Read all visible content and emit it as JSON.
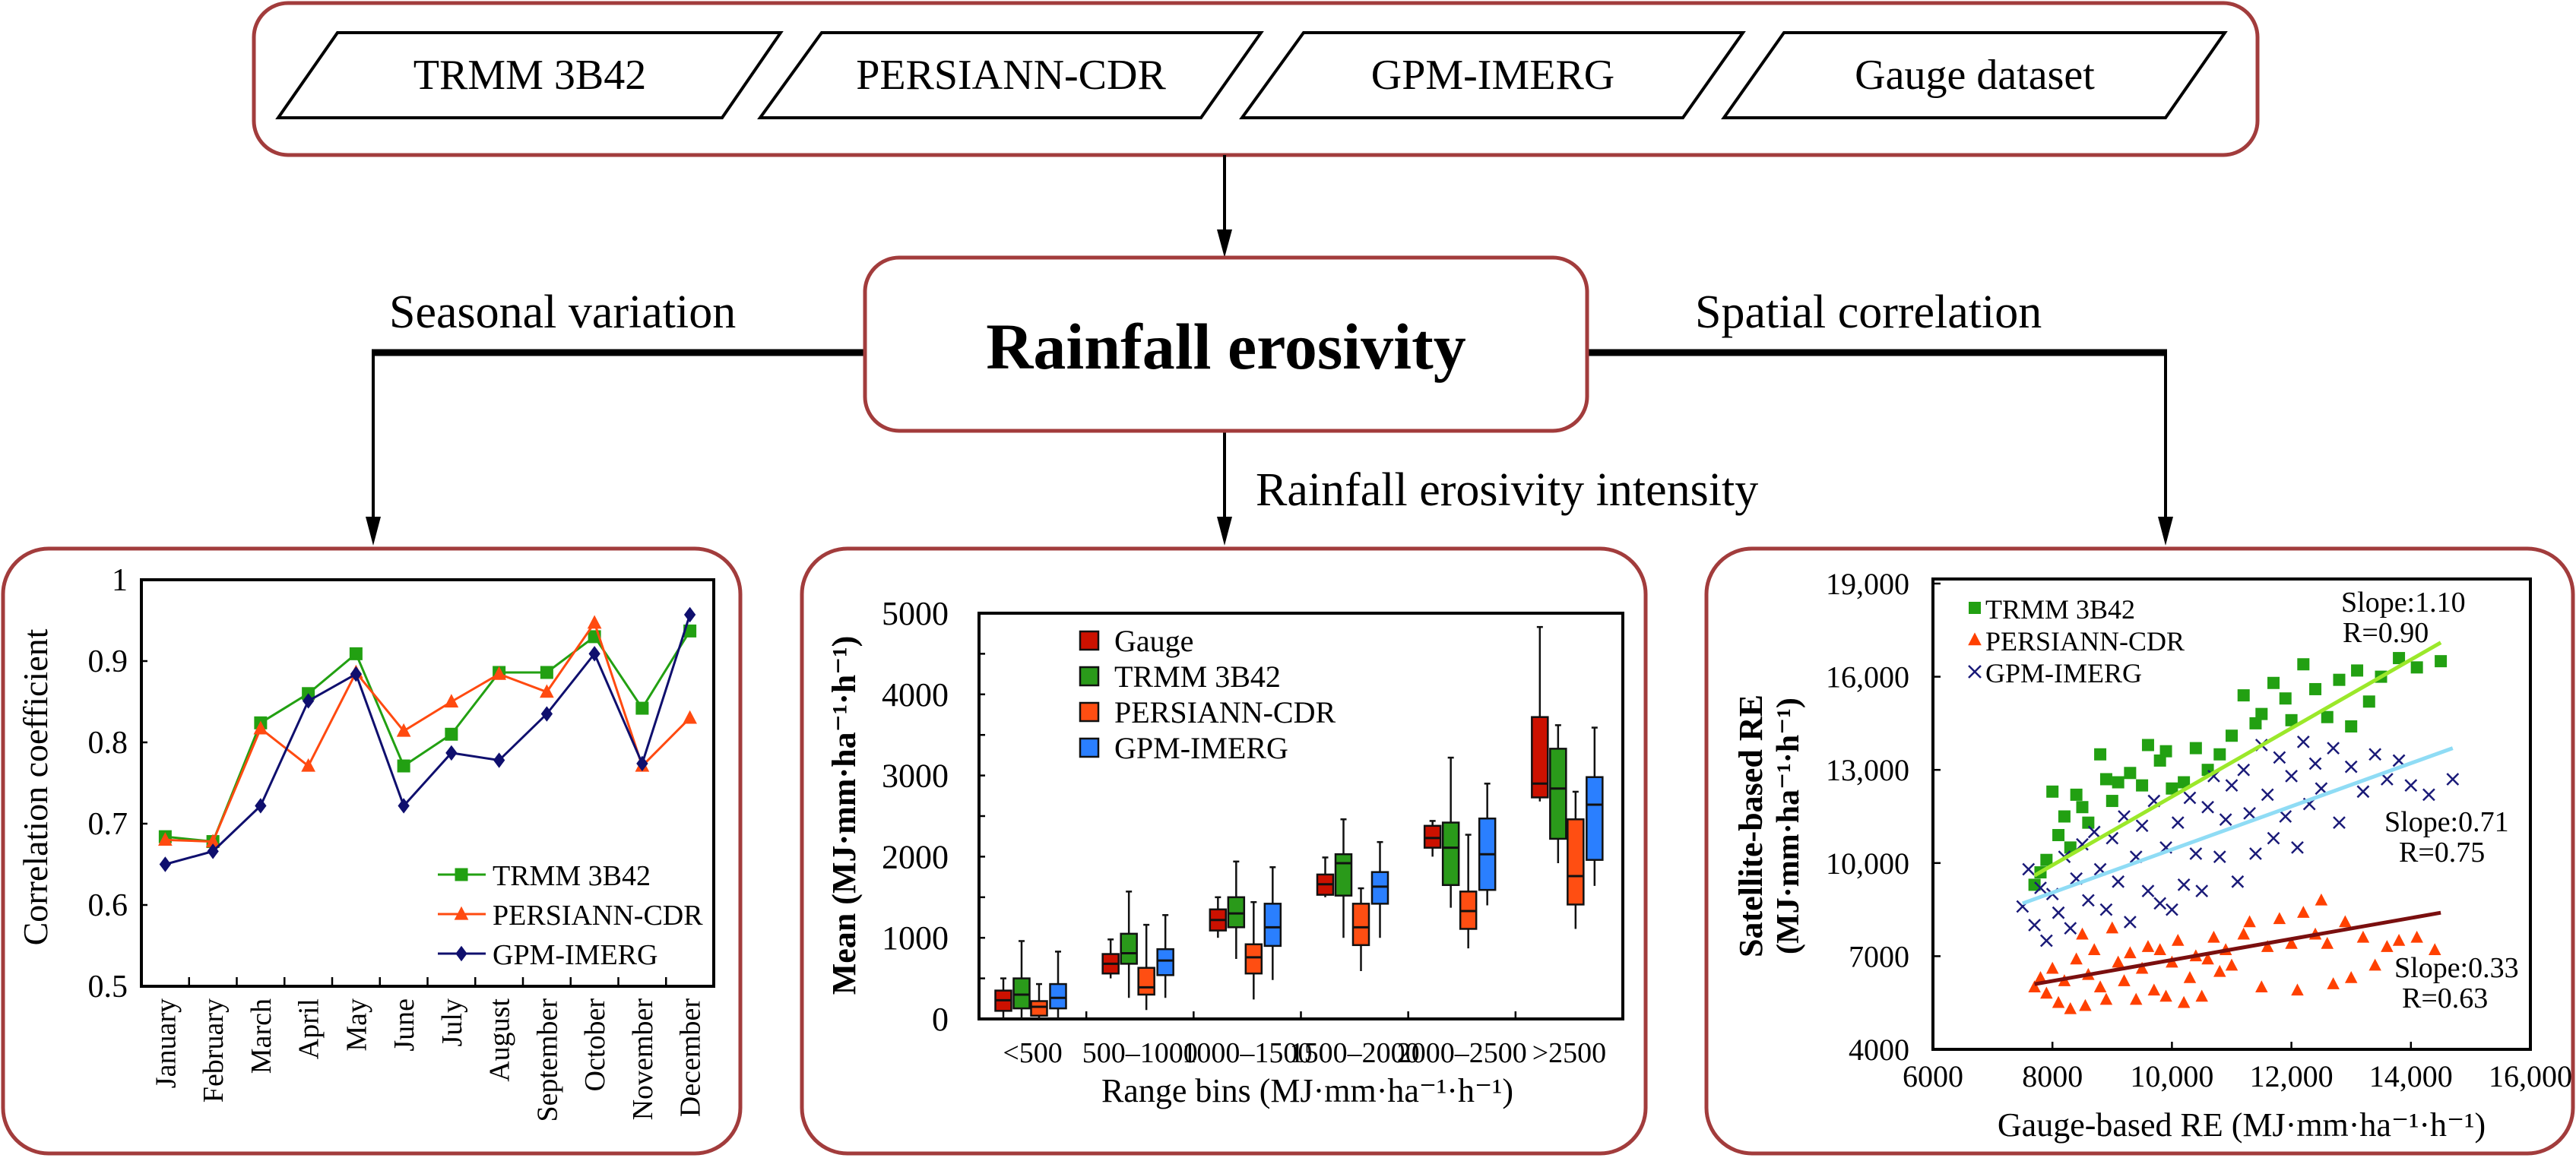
{
  "datasets": [
    "TRMM 3B42",
    "PERSIANN-CDR",
    "GPM-IMERG",
    "Gauge dataset"
  ],
  "center": {
    "title": "Rainfall erosivity"
  },
  "branches": {
    "left": "Seasonal variation",
    "middle": "Rainfall erosivity intensity",
    "right": "Spatial correlation"
  },
  "colors": {
    "panel_border": "#a23c3c"
  },
  "chart_data": [
    {
      "type": "line",
      "ylabel": "Correlation coefficient",
      "xlabel": "",
      "ylim": [
        0.5,
        1
      ],
      "yticks": [
        "0.5",
        "0.6",
        "0.7",
        "0.8",
        "0.9",
        "1"
      ],
      "categories": [
        "January",
        "February",
        "March",
        "April",
        "May",
        "June",
        "July",
        "August",
        "September",
        "October",
        "November",
        "December"
      ],
      "legend_position": "bottom-right",
      "series": [
        {
          "name": "TRMM 3B42",
          "color": "#22a012",
          "marker": "square",
          "values": [
            0.684,
            0.678,
            0.824,
            0.86,
            0.909,
            0.771,
            0.81,
            0.886,
            0.886,
            0.93,
            0.842,
            0.937
          ]
        },
        {
          "name": "PERSIANN-CDR",
          "color": "#ff4a10",
          "marker": "triangle",
          "values": [
            0.68,
            0.678,
            0.817,
            0.771,
            0.886,
            0.814,
            0.85,
            0.884,
            0.862,
            0.947,
            0.771,
            0.83
          ]
        },
        {
          "name": "GPM-IMERG",
          "color": "#0f0f6e",
          "marker": "diamond",
          "values": [
            0.65,
            0.666,
            0.722,
            0.851,
            0.884,
            0.722,
            0.787,
            0.778,
            0.835,
            0.909,
            0.774,
            0.957
          ]
        }
      ]
    },
    {
      "type": "box",
      "ylabel": "Mean (MJ·mm·ha⁻¹·h⁻¹)",
      "xlabel": "Range bins (MJ·mm·ha⁻¹·h⁻¹)",
      "ylim": [
        0,
        5000
      ],
      "yticks": [
        "0",
        "1000",
        "2000",
        "3000",
        "4000",
        "5000"
      ],
      "categories": [
        "<500",
        "500–1000",
        "1000–1500",
        "1500–2000",
        "2000–2500",
        ">2500"
      ],
      "legend_position": "top-left",
      "box_stats_order": [
        "min",
        "q1",
        "median",
        "q3",
        "max"
      ],
      "series": [
        {
          "name": "Gauge",
          "color": "#cc1100",
          "boxes": [
            [
              0,
              100,
              230,
              350,
              500
            ],
            [
              500,
              560,
              680,
              800,
              980
            ],
            [
              1000,
              1090,
              1220,
              1350,
              1500
            ],
            [
              1500,
              1530,
              1660,
              1780,
              1990
            ],
            [
              2000,
              2110,
              2230,
              2380,
              2440
            ],
            [
              2680,
              2730,
              2900,
              3720,
              4830
            ]
          ]
        },
        {
          "name": "TRMM 3B42",
          "color": "#2a9a1a",
          "boxes": [
            [
              0,
              130,
              300,
              500,
              960
            ],
            [
              260,
              680,
              810,
              1050,
              1570
            ],
            [
              740,
              1130,
              1300,
              1500,
              1940
            ],
            [
              1000,
              1520,
              1920,
              2030,
              2460
            ],
            [
              1370,
              1650,
              2110,
              2420,
              3220
            ],
            [
              1920,
              2220,
              2840,
              3330,
              3620
            ]
          ]
        },
        {
          "name": "PERSIANN-CDR",
          "color": "#ff4e12",
          "boxes": [
            [
              0,
              40,
              150,
              220,
              430
            ],
            [
              110,
              300,
              390,
              630,
              1160
            ],
            [
              240,
              560,
              760,
              920,
              1440
            ],
            [
              590,
              910,
              1130,
              1420,
              1610
            ],
            [
              870,
              1110,
              1330,
              1570,
              2270
            ],
            [
              1110,
              1410,
              1760,
              2460,
              2800
            ]
          ]
        },
        {
          "name": "GPM-IMERG",
          "color": "#2a7fff",
          "boxes": [
            [
              0,
              130,
              260,
              430,
              830
            ],
            [
              260,
              540,
              720,
              860,
              1280
            ],
            [
              480,
              900,
              1130,
              1420,
              1870
            ],
            [
              1000,
              1420,
              1630,
              1810,
              2180
            ],
            [
              1400,
              1590,
              2030,
              2470,
              2900
            ],
            [
              1640,
              1960,
              2640,
              2980,
              3590
            ]
          ]
        }
      ]
    },
    {
      "type": "scatter",
      "ylabel": "Satellite-based RE",
      "ylabel2": "(MJ·mm·ha⁻¹·h⁻¹)",
      "xlabel": "Gauge-based RE (MJ·mm·ha⁻¹·h⁻¹)",
      "xlim": [
        6000,
        16000
      ],
      "ylim": [
        4000,
        19000
      ],
      "xticks": [
        "6000",
        "8000",
        "10,000",
        "12,000",
        "14,000",
        "16,000"
      ],
      "yticks": [
        "4000",
        "7000",
        "10,000",
        "13,000",
        "16,000",
        "19,000"
      ],
      "legend_position": "top-left",
      "series": [
        {
          "name": "TRMM 3B42",
          "color": "#22a012",
          "marker": "square",
          "fit_color": "#9be82a",
          "slope_label": "Slope:1.10",
          "r_label": "R=0.90",
          "fit": [
            [
              7700,
              9600
            ],
            [
              14500,
              17100
            ]
          ],
          "points": [
            [
              7700,
              9300
            ],
            [
              7800,
              9700
            ],
            [
              7900,
              10100
            ],
            [
              8000,
              12300
            ],
            [
              8100,
              10900
            ],
            [
              8200,
              11500
            ],
            [
              8300,
              10500
            ],
            [
              8400,
              12200
            ],
            [
              8500,
              11800
            ],
            [
              8600,
              11300
            ],
            [
              8800,
              13500
            ],
            [
              8900,
              12700
            ],
            [
              9000,
              12000
            ],
            [
              9100,
              12600
            ],
            [
              9300,
              12900
            ],
            [
              9500,
              12500
            ],
            [
              9600,
              13800
            ],
            [
              9800,
              13300
            ],
            [
              9900,
              13600
            ],
            [
              10000,
              12400
            ],
            [
              10200,
              12600
            ],
            [
              10400,
              13700
            ],
            [
              10600,
              13000
            ],
            [
              10800,
              13500
            ],
            [
              11000,
              14100
            ],
            [
              11200,
              15400
            ],
            [
              11400,
              14500
            ],
            [
              11500,
              14800
            ],
            [
              11700,
              15800
            ],
            [
              11900,
              15300
            ],
            [
              12000,
              14600
            ],
            [
              12200,
              16400
            ],
            [
              12400,
              15600
            ],
            [
              12600,
              14700
            ],
            [
              12800,
              15900
            ],
            [
              13000,
              14400
            ],
            [
              13100,
              16200
            ],
            [
              13300,
              15200
            ],
            [
              13500,
              16000
            ],
            [
              13800,
              16600
            ],
            [
              14100,
              16300
            ],
            [
              14500,
              16500
            ]
          ]
        },
        {
          "name": "PERSIANN-CDR",
          "color": "#ff4000",
          "marker": "triangle",
          "fit_color": "#7a0f0f",
          "slope_label": "Slope:0.33",
          "r_label": "R=0.63",
          "fit": [
            [
              7700,
              6100
            ],
            [
              14500,
              8400
            ]
          ],
          "points": [
            [
              7700,
              6000
            ],
            [
              7800,
              6300
            ],
            [
              7900,
              5800
            ],
            [
              8000,
              6600
            ],
            [
              8100,
              5500
            ],
            [
              8200,
              6200
            ],
            [
              8300,
              5300
            ],
            [
              8400,
              6900
            ],
            [
              8500,
              7700
            ],
            [
              8550,
              5400
            ],
            [
              8600,
              6400
            ],
            [
              8700,
              7200
            ],
            [
              8800,
              6000
            ],
            [
              8900,
              5600
            ],
            [
              9000,
              7900
            ],
            [
              9100,
              6800
            ],
            [
              9200,
              6200
            ],
            [
              9300,
              7100
            ],
            [
              9400,
              5600
            ],
            [
              9500,
              6600
            ],
            [
              9600,
              7300
            ],
            [
              9700,
              5900
            ],
            [
              9800,
              7200
            ],
            [
              9900,
              5700
            ],
            [
              10000,
              6800
            ],
            [
              10100,
              7500
            ],
            [
              10200,
              5500
            ],
            [
              10300,
              6300
            ],
            [
              10400,
              7000
            ],
            [
              10500,
              5700
            ],
            [
              10600,
              6900
            ],
            [
              10700,
              7600
            ],
            [
              10800,
              6500
            ],
            [
              10900,
              7200
            ],
            [
              11000,
              6700
            ],
            [
              11200,
              7700
            ],
            [
              11300,
              8100
            ],
            [
              11500,
              6000
            ],
            [
              11600,
              7300
            ],
            [
              11800,
              8200
            ],
            [
              12000,
              7400
            ],
            [
              12100,
              5900
            ],
            [
              12200,
              8400
            ],
            [
              12400,
              7700
            ],
            [
              12500,
              8800
            ],
            [
              12600,
              7400
            ],
            [
              12700,
              6100
            ],
            [
              12900,
              8100
            ],
            [
              13000,
              6300
            ],
            [
              13200,
              7600
            ],
            [
              13400,
              6700
            ],
            [
              13600,
              7300
            ],
            [
              13800,
              7500
            ],
            [
              14100,
              7600
            ],
            [
              14400,
              7200
            ]
          ]
        },
        {
          "name": "GPM-IMERG",
          "color": "#1a1a78",
          "marker": "cross",
          "fit_color": "#8fdcf5",
          "slope_label": "Slope:0.71",
          "r_label": "R=0.75",
          "fit": [
            [
              7500,
              8700
            ],
            [
              14700,
              13700
            ]
          ],
          "points": [
            [
              7500,
              8600
            ],
            [
              7600,
              9800
            ],
            [
              7700,
              8000
            ],
            [
              7800,
              9200
            ],
            [
              7900,
              7500
            ],
            [
              8000,
              9000
            ],
            [
              8100,
              8400
            ],
            [
              8200,
              10200
            ],
            [
              8300,
              7900
            ],
            [
              8400,
              9500
            ],
            [
              8500,
              10600
            ],
            [
              8600,
              8800
            ],
            [
              8700,
              11000
            ],
            [
              8800,
              9800
            ],
            [
              8900,
              8500
            ],
            [
              9000,
              10800
            ],
            [
              9100,
              9400
            ],
            [
              9200,
              11500
            ],
            [
              9300,
              8100
            ],
            [
              9400,
              10200
            ],
            [
              9500,
              11200
            ],
            [
              9600,
              9100
            ],
            [
              9700,
              12000
            ],
            [
              9800,
              8700
            ],
            [
              9900,
              10500
            ],
            [
              10000,
              8500
            ],
            [
              10100,
              11300
            ],
            [
              10200,
              9300
            ],
            [
              10300,
              12100
            ],
            [
              10400,
              10300
            ],
            [
              10500,
              9100
            ],
            [
              10600,
              11800
            ],
            [
              10700,
              12800
            ],
            [
              10800,
              10200
            ],
            [
              10900,
              11400
            ],
            [
              11000,
              12500
            ],
            [
              11100,
              9400
            ],
            [
              11200,
              13000
            ],
            [
              11300,
              11600
            ],
            [
              11400,
              10300
            ],
            [
              11500,
              13800
            ],
            [
              11600,
              12200
            ],
            [
              11700,
              10800
            ],
            [
              11800,
              13400
            ],
            [
              11900,
              11500
            ],
            [
              12000,
              12800
            ],
            [
              12100,
              10500
            ],
            [
              12200,
              13900
            ],
            [
              12300,
              11900
            ],
            [
              12400,
              13200
            ],
            [
              12500,
              12400
            ],
            [
              12700,
              13700
            ],
            [
              12800,
              11300
            ],
            [
              13000,
              13100
            ],
            [
              13200,
              12300
            ],
            [
              13400,
              13500
            ],
            [
              13600,
              12700
            ],
            [
              13800,
              13300
            ],
            [
              14000,
              12500
            ],
            [
              14300,
              12200
            ],
            [
              14700,
              12700
            ]
          ]
        }
      ]
    }
  ]
}
